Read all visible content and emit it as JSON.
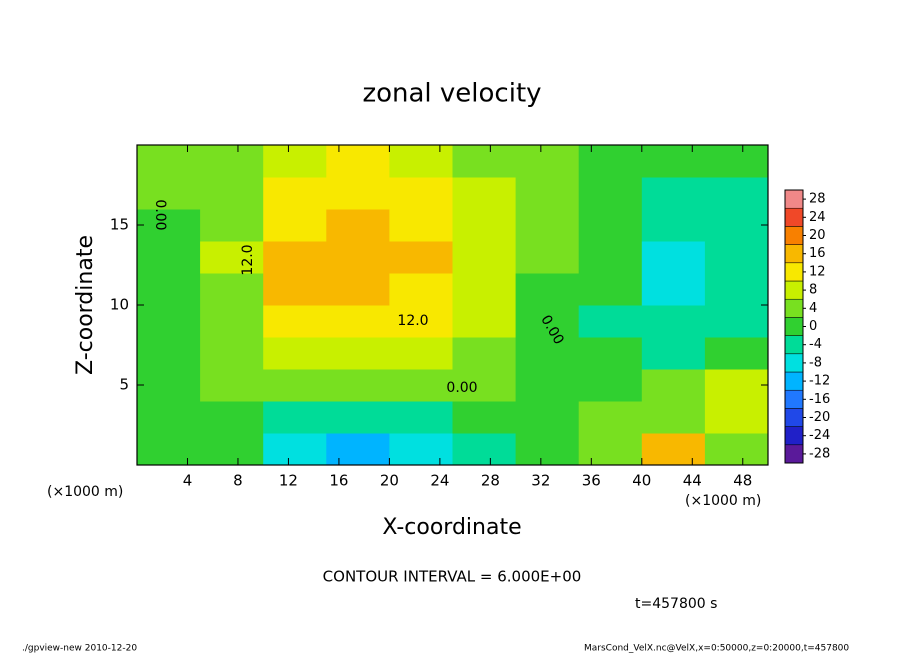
{
  "chart_data": {
    "type": "heatmap",
    "title": "zonal velocity",
    "x_label": "X-coordinate",
    "y_label": "Z-coordinate",
    "x_unit": "(×1000 m)",
    "y_unit": "(×1000 m)",
    "x": [
      2.5,
      7.5,
      12.5,
      17.5,
      22.5,
      27.5,
      32.5,
      37.5,
      42.5,
      47.5
    ],
    "y": [
      1,
      3,
      5,
      7,
      9,
      11,
      13,
      15,
      17,
      19
    ],
    "z": [
      [
        0,
        -2,
        -10,
        -12,
        -10,
        -4,
        0,
        3,
        14,
        4
      ],
      [
        -1,
        -2,
        -5,
        -6,
        -5,
        -2,
        1,
        2,
        4,
        6
      ],
      [
        1,
        2,
        3,
        3,
        3,
        2,
        1,
        0,
        2,
        6
      ],
      [
        0,
        3,
        6,
        7,
        6,
        4,
        1,
        -2,
        -3,
        -2
      ],
      [
        0,
        4,
        10,
        11,
        12,
        6,
        0,
        -3,
        -5,
        -4
      ],
      [
        0,
        5,
        14,
        15,
        12,
        7,
        1,
        -2,
        -7,
        -6
      ],
      [
        1,
        6,
        14,
        16,
        14,
        8,
        2,
        -2,
        -7,
        -5
      ],
      [
        1,
        5,
        13,
        15,
        13,
        7,
        2,
        -1,
        -5,
        -4
      ],
      [
        2,
        5,
        12,
        13,
        10,
        6,
        2,
        -1,
        -4,
        -3
      ],
      [
        2,
        5,
        9,
        10,
        8,
        5,
        2,
        0,
        -2,
        -2
      ]
    ],
    "xlim": [
      0,
      50
    ],
    "ylim": [
      0,
      20
    ],
    "xticks": [
      4,
      8,
      12,
      16,
      20,
      24,
      28,
      32,
      36,
      40,
      44,
      48
    ],
    "yticks": [
      5,
      10,
      15
    ],
    "colorbar": {
      "clim": [
        -30,
        30
      ],
      "ticks": [
        28,
        24,
        20,
        16,
        12,
        8,
        4,
        0,
        -4,
        -8,
        -12,
        -16,
        -20,
        -24,
        -28
      ],
      "colors": [
        "#5a1a9a",
        "#2020c8",
        "#2048e8",
        "#2078ff",
        "#00b4ff",
        "#00e0e0",
        "#00dc98",
        "#30d030",
        "#78e020",
        "#c8f000",
        "#f8e800",
        "#f8b800",
        "#f88000",
        "#f04828",
        "#f08888"
      ]
    },
    "contour_labels": [
      "0.00",
      "12.0",
      "12.0",
      "0.00",
      "0.00"
    ],
    "contour_note": "CONTOUR INTERVAL = 6.000E+00",
    "time_label": "t=457800 s",
    "footer_left": "./gpview-new  2010-12-20",
    "footer_right": "MarsCond_VelX.nc@VelX,x=0:50000,z=0:20000,t=457800"
  }
}
